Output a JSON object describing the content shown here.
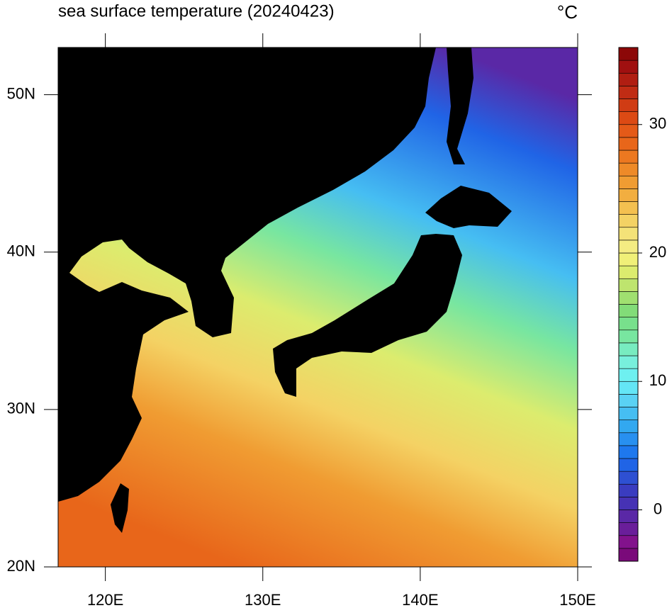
{
  "title": "sea surface temperature (20240423)",
  "units": "°C",
  "map": {
    "xlim": [
      117,
      150
    ],
    "ylim": [
      20,
      53
    ],
    "xticks": [
      {
        "value": 120,
        "label": "120E"
      },
      {
        "value": 130,
        "label": "130E"
      },
      {
        "value": 140,
        "label": "140E"
      },
      {
        "value": 150,
        "label": "150E"
      }
    ],
    "yticks": [
      {
        "value": 20,
        "label": "20N"
      },
      {
        "value": 30,
        "label": "30N"
      },
      {
        "value": 40,
        "label": "40N"
      },
      {
        "value": 50,
        "label": "50N"
      }
    ]
  },
  "colorbar": {
    "lim": [
      -4,
      36
    ],
    "ticks": [
      0,
      10,
      20,
      30
    ],
    "colors": [
      "#7a0a7a",
      "#82128c",
      "#6a1e9a",
      "#5a28a6",
      "#4632b4",
      "#3a3cc0",
      "#2e50d2",
      "#2064e6",
      "#1e78ee",
      "#2890f0",
      "#32a8f0",
      "#46bef2",
      "#5ad2f4",
      "#64e6f6",
      "#6ef0f0",
      "#78f0dc",
      "#78ecc0",
      "#78e6a0",
      "#78e08c",
      "#82dc78",
      "#a0e070",
      "#bee46e",
      "#dcec6e",
      "#f0f078",
      "#f4ec82",
      "#f4e278",
      "#f4d264",
      "#f4c050",
      "#f2ae40",
      "#f09c32",
      "#ee8a28",
      "#ec7820",
      "#e8661a",
      "#e45a18",
      "#dc4a14",
      "#d03c14",
      "#c02c14",
      "#b01e12",
      "#a01010",
      "#8c0808"
    ]
  }
}
